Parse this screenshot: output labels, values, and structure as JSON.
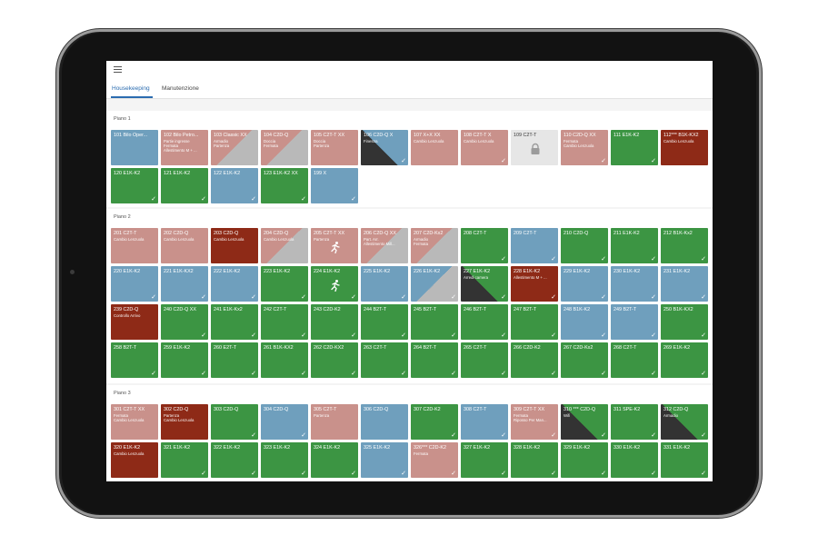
{
  "app": {
    "menu_icon": "hamburger-menu-icon"
  },
  "tabs": [
    {
      "label": "Housekeeping",
      "active": true
    },
    {
      "label": "Manutenzione",
      "active": false
    }
  ],
  "colors": {
    "green": "#3c9543",
    "blue": "#6f9fbd",
    "pink": "#c9918b",
    "red": "#8e2a17",
    "grey": "#e6e6e6",
    "dark": "#333333",
    "tab_active": "#2b6cb0"
  },
  "floors": [
    {
      "label": "Piano 1",
      "rooms": [
        {
          "name": "101 Bilo Oper...",
          "color": "blue",
          "note": ""
        },
        {
          "name": "102 Bilo Petro...",
          "color": "pink",
          "note": "Partie ingresse\nFermata\nAllestimento M + ..."
        },
        {
          "name": "103 Classic XX",
          "color": "pink",
          "note": "Armadio\nPartenza",
          "diag": true
        },
        {
          "name": "104 C2D-Q",
          "color": "pink",
          "note": "Doccia\nFermata",
          "diag": true
        },
        {
          "name": "105 C2T-T XX",
          "color": "pink",
          "note": "Doccia\nPartenza"
        },
        {
          "name": "106 C2D-Q X",
          "color": "blue",
          "note": "Finestra",
          "diag_dark": true,
          "check": true
        },
        {
          "name": "107 X+X XX",
          "color": "pink",
          "note": "Cambio Lenzuola"
        },
        {
          "name": "108 C2T-T X",
          "color": "pink",
          "note": "Cambio Lenzuola",
          "check": true
        },
        {
          "name": "109 C2T-T",
          "color": "grey",
          "note": "",
          "lock": true
        },
        {
          "name": "110 C2D-Q XX",
          "color": "pink",
          "note": "Fermata\nCambio Lenzuola",
          "check": true
        },
        {
          "name": "111 E1K-K2",
          "color": "green",
          "note": "",
          "check": true
        },
        {
          "name": "112*** B1K-KX2",
          "color": "red",
          "note": "Cambio Lenzuola"
        },
        {
          "name": "120 E1K-K2",
          "color": "green",
          "note": "",
          "check": true
        },
        {
          "name": "121 E1K-K2",
          "color": "green",
          "note": "",
          "check": true
        },
        {
          "name": "122 E1K-K2",
          "color": "blue",
          "note": "",
          "check": true
        },
        {
          "name": "123 E1K-K2 XX",
          "color": "green",
          "note": "",
          "check": true
        },
        {
          "name": "199 X",
          "color": "blue",
          "note": "",
          "check": true
        }
      ]
    },
    {
      "label": "Piano 2",
      "rooms": [
        {
          "name": "201 C2T-T",
          "color": "pink",
          "note": "Cambio Lenzuola"
        },
        {
          "name": "202 C2D-Q",
          "color": "pink",
          "note": "Cambio Lenzuola"
        },
        {
          "name": "203 C2D-Q",
          "color": "red",
          "note": "Cambio Lenzuola"
        },
        {
          "name": "204 C2D-Q",
          "color": "pink",
          "note": "Cambio Lenzuola",
          "diag": true
        },
        {
          "name": "205 C2T-T XX",
          "color": "pink",
          "note": "Partenza",
          "runner": true
        },
        {
          "name": "206 C2D-Q XX",
          "color": "pink",
          "note": "Part. Arr.\nAllestimento Mill...",
          "diag": true
        },
        {
          "name": "207 C2D-Kx2",
          "color": "pink",
          "note": "Armadio\nFermata",
          "diag": true
        },
        {
          "name": "208 C2T-T",
          "color": "green",
          "note": "",
          "check": true
        },
        {
          "name": "209 C2T-T",
          "color": "blue",
          "note": "",
          "check": true
        },
        {
          "name": "210 C2D-Q",
          "color": "green",
          "note": "",
          "check": true
        },
        {
          "name": "211 E1K-K2",
          "color": "green",
          "note": "",
          "check": true
        },
        {
          "name": "212 B1K-Kx2",
          "color": "green",
          "note": "",
          "check": true
        },
        {
          "name": "220 E1K-K2",
          "color": "blue",
          "note": "",
          "check": true
        },
        {
          "name": "221 E1K-KX2",
          "color": "blue",
          "note": "",
          "check": true
        },
        {
          "name": "222 E1K-K2",
          "color": "blue",
          "note": "",
          "check": true
        },
        {
          "name": "223 E1K-K2",
          "color": "green",
          "note": "",
          "check": true
        },
        {
          "name": "224 E1K-K2",
          "color": "green",
          "note": "",
          "runner": true,
          "check": true
        },
        {
          "name": "225 E1K-K2",
          "color": "blue",
          "note": "",
          "check": true
        },
        {
          "name": "226 E1K-K2",
          "color": "blue",
          "note": "",
          "diag": true,
          "check": true
        },
        {
          "name": "227 E1K-K2",
          "color": "green",
          "note": "Arredi camera",
          "diag_dark": true,
          "check": true
        },
        {
          "name": "228 E1K-K2",
          "color": "red",
          "note": "Allestimento M + ...",
          "check": true
        },
        {
          "name": "229 E1K-K2",
          "color": "blue",
          "note": "",
          "check": true
        },
        {
          "name": "230 E1K-K2",
          "color": "blue",
          "note": "",
          "check": true
        },
        {
          "name": "231 E1K-K2",
          "color": "blue",
          "note": "",
          "check": true
        },
        {
          "name": "239 C2D-Q",
          "color": "red",
          "note": "Controllo Arrivo"
        },
        {
          "name": "240 C2D-Q XX",
          "color": "green",
          "note": "",
          "check": true
        },
        {
          "name": "241 E1K-Kx2",
          "color": "green",
          "note": "",
          "check": true
        },
        {
          "name": "242 C2T-T",
          "color": "green",
          "note": "",
          "check": true
        },
        {
          "name": "243 C2D-K2",
          "color": "green",
          "note": "",
          "check": true
        },
        {
          "name": "244 B2T-T",
          "color": "green",
          "note": "",
          "check": true
        },
        {
          "name": "245 B2T-T",
          "color": "green",
          "note": "",
          "check": true
        },
        {
          "name": "246 B2T-T",
          "color": "green",
          "note": "",
          "check": true
        },
        {
          "name": "247 B2T-T",
          "color": "green",
          "note": "",
          "check": true
        },
        {
          "name": "248 B1K-K2",
          "color": "blue",
          "note": "",
          "check": true
        },
        {
          "name": "249 B2T-T",
          "color": "blue",
          "note": "",
          "check": true
        },
        {
          "name": "250 B1K-KX2",
          "color": "green",
          "note": "",
          "check": true
        },
        {
          "name": "258 B2T-T",
          "color": "green",
          "note": "",
          "check": true
        },
        {
          "name": "259 E1K-K2",
          "color": "green",
          "note": "",
          "check": true
        },
        {
          "name": "260 E2T-T",
          "color": "green",
          "note": "",
          "check": true
        },
        {
          "name": "261 B1K-KX2",
          "color": "green",
          "note": "",
          "check": true
        },
        {
          "name": "262 C2D-KX2",
          "color": "green",
          "note": "",
          "check": true
        },
        {
          "name": "263 C2T-T",
          "color": "green",
          "note": "",
          "check": true
        },
        {
          "name": "264 B2T-T",
          "color": "green",
          "note": "",
          "check": true
        },
        {
          "name": "265 C2T-T",
          "color": "green",
          "note": "",
          "check": true
        },
        {
          "name": "266 C2D-K2",
          "color": "green",
          "note": "",
          "check": true
        },
        {
          "name": "267 C2D-Kx2",
          "color": "green",
          "note": "",
          "check": true
        },
        {
          "name": "268 C2T-T",
          "color": "green",
          "note": "",
          "check": true
        },
        {
          "name": "269 E1K-K2",
          "color": "green",
          "note": "",
          "check": true
        }
      ]
    },
    {
      "label": "Piano 3",
      "rooms": [
        {
          "name": "301 C2T-T XX",
          "color": "pink",
          "note": "Fermata\nCambio Lenzuola"
        },
        {
          "name": "302 C2D-Q",
          "color": "red",
          "note": "Partenza\nCambio Lenzuola"
        },
        {
          "name": "303 C2D-Q",
          "color": "green",
          "note": "",
          "check": true
        },
        {
          "name": "304 C2D-Q",
          "color": "blue",
          "note": "",
          "check": true
        },
        {
          "name": "305 C2T-T",
          "color": "pink",
          "note": "Partenza"
        },
        {
          "name": "306 C2D-Q",
          "color": "blue",
          "note": ""
        },
        {
          "name": "307 C2D-K2",
          "color": "green",
          "note": "",
          "check": true
        },
        {
          "name": "308 C2T-T",
          "color": "blue",
          "note": "",
          "check": true
        },
        {
          "name": "309 C2T-T XX",
          "color": "pink",
          "note": "Fermata\nRiposso Per Man...",
          "check": true
        },
        {
          "name": "310 *** C2D-Q",
          "color": "green",
          "note": "Wifi",
          "diag_dark": true,
          "check": true
        },
        {
          "name": "311 SPE-K2",
          "color": "green",
          "note": "",
          "check": true
        },
        {
          "name": "312 C2D-Q",
          "color": "green",
          "note": "Armadio",
          "diag_dark": true,
          "check": true
        },
        {
          "name": "320 E1K-K2",
          "color": "red",
          "note": "Cambio Lenzuola"
        },
        {
          "name": "321 E1K-K2",
          "color": "green",
          "note": "",
          "check": true
        },
        {
          "name": "322 E1K-K2",
          "color": "green",
          "note": "",
          "check": true
        },
        {
          "name": "323 E1K-K2",
          "color": "green",
          "note": "",
          "check": true
        },
        {
          "name": "324 E1K-K2",
          "color": "green",
          "note": "",
          "check": true
        },
        {
          "name": "325 E1K-K2",
          "color": "blue",
          "note": "",
          "check": true
        },
        {
          "name": "326*** C2D-K2",
          "color": "pink",
          "note": "Fermata",
          "check": true
        },
        {
          "name": "327 E1K-K2",
          "color": "green",
          "note": "",
          "check": true
        },
        {
          "name": "328 E1K-K2",
          "color": "green",
          "note": "",
          "check": true
        },
        {
          "name": "329 E1K-K2",
          "color": "green",
          "note": "",
          "check": true
        },
        {
          "name": "330 E1K-K2",
          "color": "green",
          "note": "",
          "check": true
        },
        {
          "name": "331 E1K-K2",
          "color": "green",
          "note": "",
          "check": true
        }
      ]
    }
  ]
}
